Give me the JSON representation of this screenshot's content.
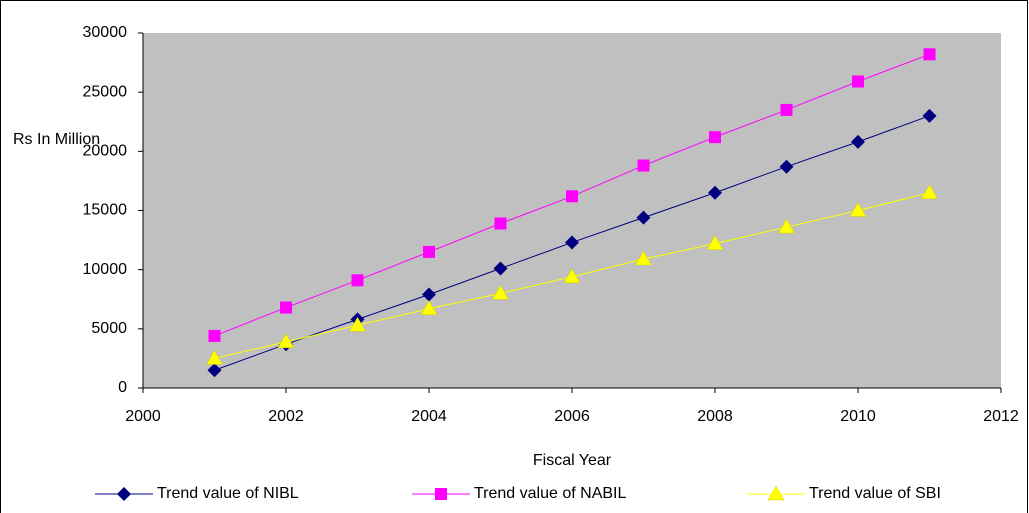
{
  "chart_data": {
    "type": "line",
    "x_label": "Fiscal Year",
    "y_label": "Rs In Million",
    "x": [
      2001,
      2002,
      2003,
      2004,
      2005,
      2006,
      2007,
      2008,
      2009,
      2010,
      2011
    ],
    "series": [
      {
        "name": "Trend value of NIBL",
        "color": "#000080",
        "marker": "diamond",
        "values": [
          1500,
          3700,
          5800,
          7900,
          10100,
          12300,
          14400,
          16500,
          18700,
          20800,
          23000
        ]
      },
      {
        "name": "Trend value of NABIL",
        "color": "#ff00ff",
        "marker": "square",
        "values": [
          4400,
          6800,
          9100,
          11500,
          13900,
          16200,
          18800,
          21200,
          23500,
          25900,
          28200
        ]
      },
      {
        "name": "Trend value of SBI",
        "color": "#ffff00",
        "marker": "triangle",
        "values": [
          2500,
          3900,
          5300,
          6700,
          8000,
          9400,
          10900,
          12200,
          13600,
          15000,
          16500
        ]
      }
    ],
    "xlim": [
      2000,
      2012
    ],
    "xticks": [
      2000,
      2002,
      2004,
      2006,
      2008,
      2010,
      2012
    ],
    "ylim": [
      0,
      30000
    ],
    "yticks": [
      0,
      5000,
      10000,
      15000,
      20000,
      25000,
      30000
    ],
    "plot_background": "#c0c0c0",
    "grid": false,
    "legend": "bottom"
  }
}
